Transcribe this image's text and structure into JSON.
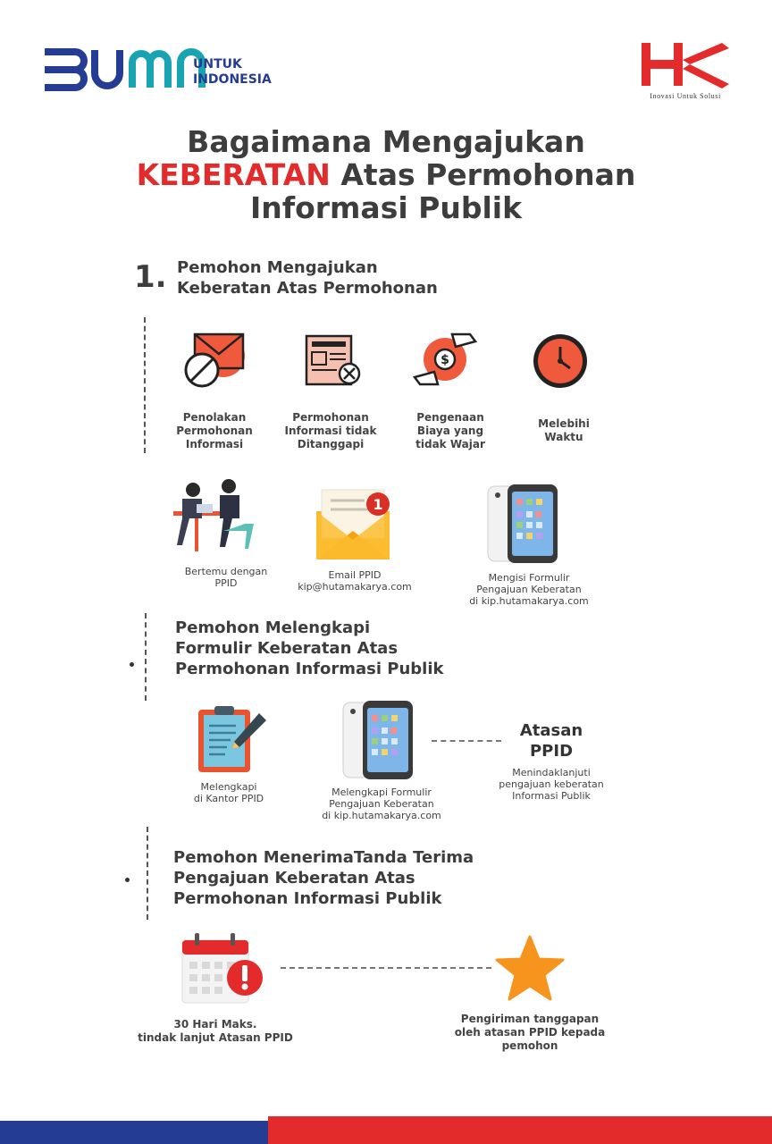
{
  "brand": {
    "bumn_letters": "BUMN",
    "bumn_tagline_line1": "UNTUK",
    "bumn_tagline_line2": "INDONESIA",
    "hk_letters": "HK",
    "hk_tagline": "Inovasi Untuk Solusi",
    "colors": {
      "navy": "#243c93",
      "teal": "#18a4b0",
      "red": "#e32b2b"
    }
  },
  "title": {
    "line1": "Bagaimana Mengajukan",
    "line2_accent": "KEBERATAN",
    "line2_rest": " Atas Permohonan",
    "line3": "Informasi Publik"
  },
  "step1": {
    "number": "1.",
    "heading_line1": "Pemohon Mengajukan",
    "heading_line2": "Keberatan Atas Permohonan",
    "reasons": [
      {
        "icon": "envelope-rejected-icon",
        "line1": "Penolakan",
        "line2": "Permohonan",
        "line3": "Informasi"
      },
      {
        "icon": "document-rejected-icon",
        "line1": "Permohonan",
        "line2": "Informasi tidak",
        "line3": "Ditanggapi"
      },
      {
        "icon": "money-hand-icon",
        "line1": "Pengenaan",
        "line2": "Biaya yang",
        "line3": "tidak Wajar"
      },
      {
        "icon": "clock-icon",
        "line1": "Melebihi",
        "line2": "Waktu"
      }
    ],
    "channels": [
      {
        "icon": "meeting-icon",
        "line1": "Bertemu dengan",
        "line2": "PPID"
      },
      {
        "icon": "email-notification-icon",
        "line1": "Email PPID",
        "line2": "kip@hutamakarya.com",
        "badge": "1"
      },
      {
        "icon": "phone-form-icon",
        "line1": "Mengisi Formulir",
        "line2": "Pengajuan Keberatan",
        "line3": "di kip.hutamakarya.com"
      }
    ]
  },
  "step2": {
    "heading_line1": "Pemohon Melengkapi",
    "heading_line2": "Formulir Keberatan Atas",
    "heading_line3": "Permohonan Informasi Publik",
    "items": [
      {
        "icon": "clipboard-pen-icon",
        "line1": "Melengkapi",
        "line2": "di Kantor PPID"
      },
      {
        "icon": "phone-form-icon",
        "line1": "Melengkapi Formulir",
        "line2": "Pengajuan Keberatan",
        "line3": "di kip.hutamakarya.com"
      }
    ],
    "ppid": {
      "title_line1": "Atasan",
      "title_line2": "PPID",
      "desc_line1": "Menindaklanjuti",
      "desc_line2": "pengajuan keberatan",
      "desc_line3": "Informasi Publik"
    }
  },
  "step3": {
    "heading_line1": "Pemohon MenerimaTanda Terima",
    "heading_line2": "Pengajuan Keberatan Atas",
    "heading_line3": "Permohonan Informasi Publik",
    "calendar": {
      "icon": "calendar-alert-icon",
      "line1": "30 Hari Maks.",
      "line2": "tindak lanjut Atasan PPID"
    },
    "response": {
      "icon": "star-icon",
      "line1": "Pengiriman tanggapan",
      "line2": "oleh atasan PPID kepada",
      "line3": "pemohon"
    }
  }
}
